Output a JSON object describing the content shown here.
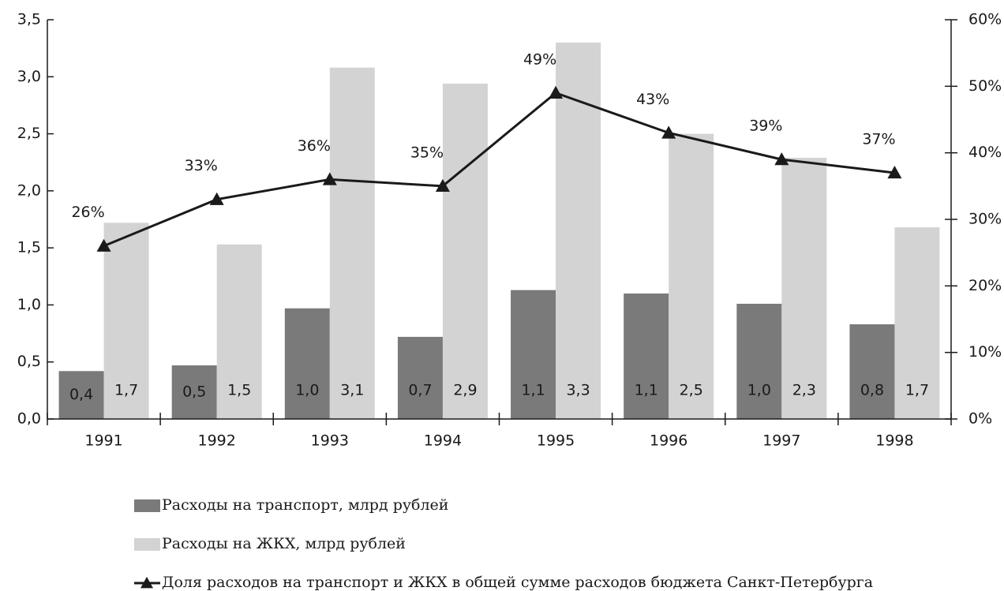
{
  "chart_data": {
    "type": "bar_line",
    "categories": [
      "1991",
      "1992",
      "1993",
      "1994",
      "1995",
      "1996",
      "1997",
      "1998"
    ],
    "series": [
      {
        "name": "Расходы на транспорт, млрд рублей",
        "color": "#7a7a7a",
        "type": "bar",
        "values": [
          0.42,
          0.47,
          0.97,
          0.72,
          1.13,
          1.1,
          1.01,
          0.83
        ],
        "value_labels": [
          "0,4",
          "0,5",
          "1,0",
          "0,7",
          "1,1",
          "1,1",
          "1,0",
          "0,8"
        ]
      },
      {
        "name": "Расходы на ЖКХ, млрд рублей",
        "color": "#d3d3d3",
        "type": "bar",
        "values": [
          1.72,
          1.53,
          3.08,
          2.94,
          3.3,
          2.5,
          2.29,
          1.68
        ],
        "value_labels": [
          "1,7",
          "1,5",
          "3,1",
          "2,9",
          "3,3",
          "2,5",
          "2,3",
          "1,7"
        ]
      },
      {
        "name": "Доля расходов на транспорт и ЖКХ в общей сумме расходов бюджета Санкт-Петербурга",
        "color": "#1a1a1a",
        "type": "line",
        "axis": "y2",
        "values": [
          26,
          33,
          36,
          35,
          49,
          43,
          39,
          37
        ],
        "value_labels": [
          "26%",
          "33%",
          "36%",
          "35%",
          "49%",
          "43%",
          "39%",
          "37%"
        ]
      }
    ],
    "ylim": [
      0,
      3.5
    ],
    "yticks": [
      {
        "value": 0,
        "label": "0,0"
      },
      {
        "value": 0.5,
        "label": "0,5"
      },
      {
        "value": 1,
        "label": "1,0"
      },
      {
        "value": 1.5,
        "label": "1,5"
      },
      {
        "value": 2,
        "label": "2,0"
      },
      {
        "value": 2.5,
        "label": "2,5"
      },
      {
        "value": 3,
        "label": "3,0"
      },
      {
        "value": 3.5,
        "label": "3,5"
      }
    ],
    "y2lim": [
      0,
      60
    ],
    "y2ticks": [
      {
        "value": 0,
        "label": "0%"
      },
      {
        "value": 10,
        "label": "10%"
      },
      {
        "value": 20,
        "label": "20%"
      },
      {
        "value": 30,
        "label": "30%"
      },
      {
        "value": 40,
        "label": "40%"
      },
      {
        "value": 50,
        "label": "50%"
      },
      {
        "value": 60,
        "label": "60%"
      }
    ],
    "legend": "bottom"
  }
}
